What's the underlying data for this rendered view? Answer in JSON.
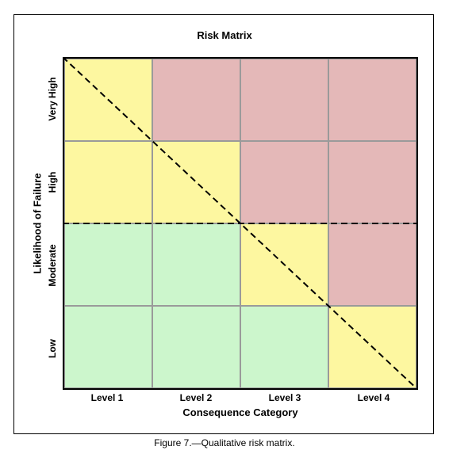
{
  "title": "Risk Matrix",
  "x_axis": {
    "title": "Consequence Category",
    "levels": [
      "Level 1",
      "Level 2",
      "Level 3",
      "Level 4"
    ]
  },
  "y_axis": {
    "title": "Likelihood of Failure",
    "levels_top_to_bottom": [
      "Very High",
      "High",
      "Moderate",
      "Low"
    ]
  },
  "caption": "Figure 7.—Qualitative risk matrix.",
  "colors": {
    "red": "#e4b8b8",
    "yellow": "#fdf7a0",
    "green": "#ccf6cc"
  },
  "cells": [
    [
      "yellow",
      "red",
      "red",
      "red"
    ],
    [
      "yellow",
      "yellow",
      "red",
      "red"
    ],
    [
      "green",
      "green",
      "yellow",
      "red"
    ],
    [
      "green",
      "green",
      "green",
      "yellow"
    ]
  ]
}
